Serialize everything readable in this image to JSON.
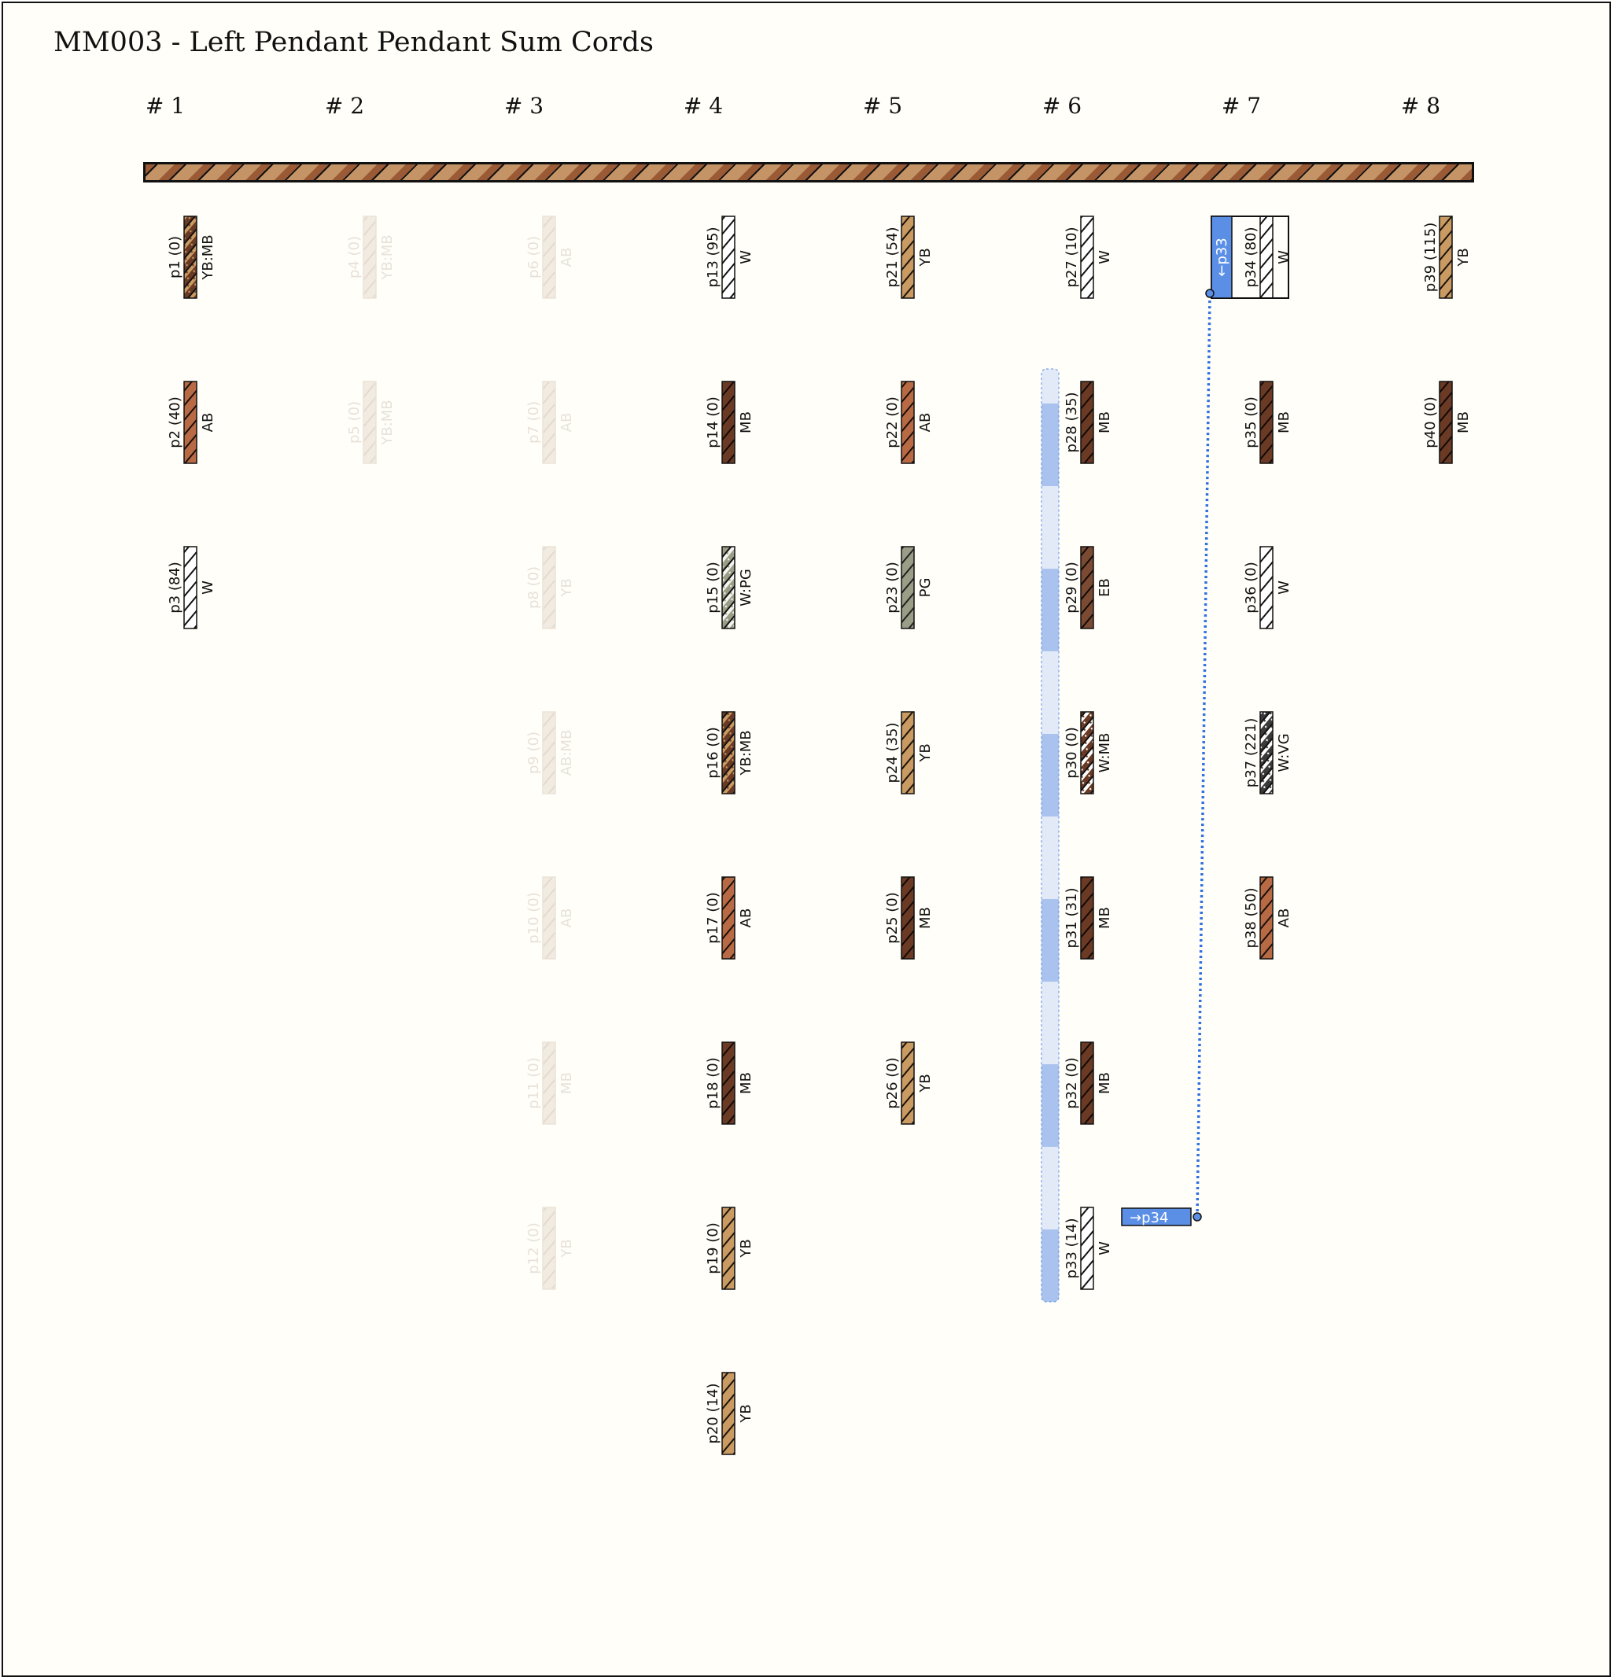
{
  "title": "MM003 - Left Pendant Pendant Sum Cords",
  "groups": [
    "# 1",
    "# 2",
    "# 3",
    "# 4",
    "# 5",
    "# 6",
    "# 7",
    "# 8"
  ],
  "colors": {
    "AB": "#b86a45",
    "MB": "#6b3a24",
    "YB": "#c99a62",
    "W": "#ffffff",
    "PG": "#9a9e86",
    "EB": "#7a4a33",
    "primary_cord": "#c49466",
    "primary_cord_stripe": "#9a5a36",
    "primary_cord_dots": "#2a6a82",
    "highlight": "#5b8fe6",
    "faded": "#e8dccf"
  },
  "pendants": [
    {
      "id": "p1",
      "value": 0,
      "color": "YB:MB",
      "group": 1,
      "row": 1,
      "faded": false
    },
    {
      "id": "p2",
      "value": 40,
      "color": "AB",
      "group": 1,
      "row": 2,
      "faded": false
    },
    {
      "id": "p3",
      "value": 84,
      "color": "W",
      "group": 1,
      "row": 3,
      "faded": false
    },
    {
      "id": "p4",
      "value": 0,
      "color": "YB:MB",
      "group": 2,
      "row": 1,
      "faded": true
    },
    {
      "id": "p5",
      "value": 0,
      "color": "YB:MB",
      "group": 2,
      "row": 2,
      "faded": true
    },
    {
      "id": "p6",
      "value": 0,
      "color": "AB",
      "group": 3,
      "row": 1,
      "faded": true
    },
    {
      "id": "p7",
      "value": 0,
      "color": "AB",
      "group": 3,
      "row": 2,
      "faded": true
    },
    {
      "id": "p8",
      "value": 0,
      "color": "YB",
      "group": 3,
      "row": 3,
      "faded": true
    },
    {
      "id": "p9",
      "value": 0,
      "color": "AB:MB",
      "group": 3,
      "row": 4,
      "faded": true
    },
    {
      "id": "p10",
      "value": 0,
      "color": "AB",
      "group": 3,
      "row": 5,
      "faded": true
    },
    {
      "id": "p11",
      "value": 0,
      "color": "MB",
      "group": 3,
      "row": 6,
      "faded": true
    },
    {
      "id": "p12",
      "value": 0,
      "color": "YB",
      "group": 3,
      "row": 7,
      "faded": true
    },
    {
      "id": "p13",
      "value": 95,
      "color": "W",
      "group": 4,
      "row": 1,
      "faded": false
    },
    {
      "id": "p14",
      "value": 0,
      "color": "MB",
      "group": 4,
      "row": 2,
      "faded": false
    },
    {
      "id": "p15",
      "value": 0,
      "color": "W:PG",
      "group": 4,
      "row": 3,
      "faded": false
    },
    {
      "id": "p16",
      "value": 0,
      "color": "YB:MB",
      "group": 4,
      "row": 4,
      "faded": false
    },
    {
      "id": "p17",
      "value": 0,
      "color": "AB",
      "group": 4,
      "row": 5,
      "faded": false
    },
    {
      "id": "p18",
      "value": 0,
      "color": "MB",
      "group": 4,
      "row": 6,
      "faded": false
    },
    {
      "id": "p19",
      "value": 0,
      "color": "YB",
      "group": 4,
      "row": 7,
      "faded": false
    },
    {
      "id": "p20",
      "value": 14,
      "color": "YB",
      "group": 4,
      "row": 8,
      "faded": false
    },
    {
      "id": "p21",
      "value": 54,
      "color": "YB",
      "group": 5,
      "row": 1,
      "faded": false
    },
    {
      "id": "p22",
      "value": 0,
      "color": "AB",
      "group": 5,
      "row": 2,
      "faded": false
    },
    {
      "id": "p23",
      "value": 0,
      "color": "PG",
      "group": 5,
      "row": 3,
      "faded": false
    },
    {
      "id": "p24",
      "value": 35,
      "color": "YB",
      "group": 5,
      "row": 4,
      "faded": false
    },
    {
      "id": "p25",
      "value": 0,
      "color": "MB",
      "group": 5,
      "row": 5,
      "faded": false
    },
    {
      "id": "p26",
      "value": 0,
      "color": "YB",
      "group": 5,
      "row": 6,
      "faded": false
    },
    {
      "id": "p27",
      "value": 10,
      "color": "W",
      "group": 6,
      "row": 1,
      "faded": false
    },
    {
      "id": "p28",
      "value": 35,
      "color": "MB",
      "group": 6,
      "row": 2,
      "faded": false
    },
    {
      "id": "p29",
      "value": 0,
      "color": "EB",
      "group": 6,
      "row": 3,
      "faded": false
    },
    {
      "id": "p30",
      "value": 0,
      "color": "W:MB",
      "group": 6,
      "row": 4,
      "faded": false
    },
    {
      "id": "p31",
      "value": 31,
      "color": "MB",
      "group": 6,
      "row": 5,
      "faded": false
    },
    {
      "id": "p32",
      "value": 0,
      "color": "MB",
      "group": 6,
      "row": 6,
      "faded": false
    },
    {
      "id": "p33",
      "value": 14,
      "color": "W",
      "group": 6,
      "row": 7,
      "faded": false
    },
    {
      "id": "p34",
      "value": 80,
      "color": "W",
      "group": 7,
      "row": 1,
      "faded": false
    },
    {
      "id": "p35",
      "value": 0,
      "color": "MB",
      "group": 7,
      "row": 2,
      "faded": false
    },
    {
      "id": "p36",
      "value": 0,
      "color": "W",
      "group": 7,
      "row": 3,
      "faded": false
    },
    {
      "id": "p37",
      "value": 221,
      "color": "W:VG",
      "group": 7,
      "row": 4,
      "faded": false
    },
    {
      "id": "p38",
      "value": 50,
      "color": "AB",
      "group": 7,
      "row": 5,
      "faded": false
    },
    {
      "id": "p39",
      "value": 115,
      "color": "YB",
      "group": 8,
      "row": 1,
      "faded": false
    },
    {
      "id": "p40",
      "value": 0,
      "color": "MB",
      "group": 8,
      "row": 2,
      "faded": false
    }
  ],
  "sum_link": {
    "source": "p33",
    "target": "p34",
    "source_label": "→p34",
    "target_label": "←p33",
    "range_start_row": 2,
    "range_end_row": 7,
    "range_group": 6
  }
}
